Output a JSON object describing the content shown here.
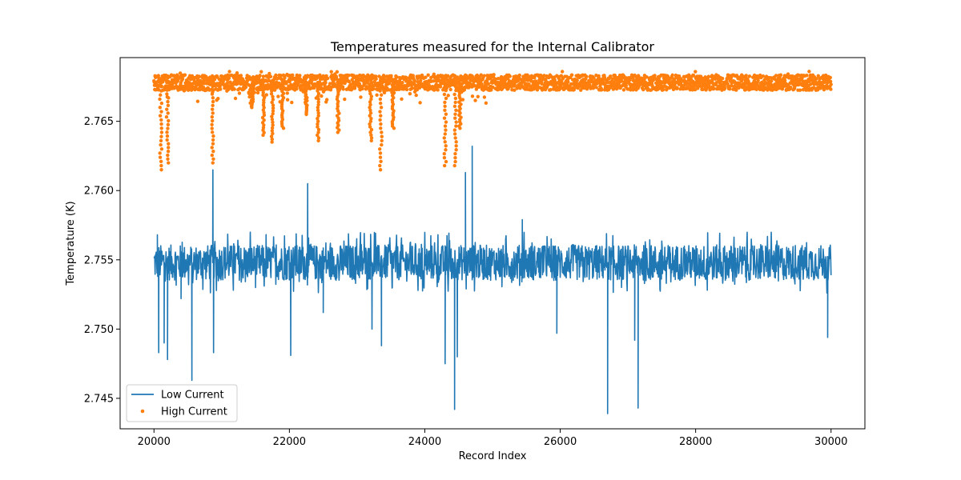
{
  "chart_data": {
    "type": "line",
    "title": "Temperatures measured for the Internal Calibrator",
    "xlabel": "Record Index",
    "ylabel": "Temperature (K)",
    "xlim": [
      19500,
      30500
    ],
    "ylim": [
      2.7428,
      2.7696
    ],
    "xticks": [
      20000,
      22000,
      24000,
      26000,
      28000,
      30000
    ],
    "xtick_labels": [
      "20000",
      "22000",
      "24000",
      "26000",
      "28000",
      "30000"
    ],
    "yticks": [
      2.745,
      2.75,
      2.755,
      2.76,
      2.765
    ],
    "ytick_labels": [
      "2.745",
      "2.750",
      "2.755",
      "2.760",
      "2.765"
    ],
    "grid": false,
    "legend_position": "lower-left",
    "series": [
      {
        "name": "Low Current",
        "style": "line",
        "color": "#1f77b4",
        "x_range": [
          20000,
          30000
        ],
        "baseline": 2.7548,
        "noise_band": [
          2.7535,
          2.7562
        ],
        "spikes": [
          {
            "x": 20050,
            "y": 2.7568
          },
          {
            "x": 20070,
            "y": 2.7483
          },
          {
            "x": 20150,
            "y": 2.749
          },
          {
            "x": 20200,
            "y": 2.7478
          },
          {
            "x": 20400,
            "y": 2.7522
          },
          {
            "x": 20560,
            "y": 2.7463
          },
          {
            "x": 20870,
            "y": 2.7615
          },
          {
            "x": 20880,
            "y": 2.7483
          },
          {
            "x": 21500,
            "y": 2.753
          },
          {
            "x": 21650,
            "y": 2.7545
          },
          {
            "x": 22020,
            "y": 2.7481
          },
          {
            "x": 22270,
            "y": 2.7605
          },
          {
            "x": 22500,
            "y": 2.7512
          },
          {
            "x": 23000,
            "y": 2.7548
          },
          {
            "x": 23220,
            "y": 2.75
          },
          {
            "x": 23360,
            "y": 2.7488
          },
          {
            "x": 23520,
            "y": 2.753
          },
          {
            "x": 24300,
            "y": 2.7475
          },
          {
            "x": 24440,
            "y": 2.7442
          },
          {
            "x": 24480,
            "y": 2.748
          },
          {
            "x": 24600,
            "y": 2.7613
          },
          {
            "x": 24700,
            "y": 2.7632
          },
          {
            "x": 25440,
            "y": 2.7579
          },
          {
            "x": 25950,
            "y": 2.7497
          },
          {
            "x": 26700,
            "y": 2.7439
          },
          {
            "x": 27100,
            "y": 2.7492
          },
          {
            "x": 27150,
            "y": 2.7443
          },
          {
            "x": 29950,
            "y": 2.7494
          }
        ]
      },
      {
        "name": "High Current",
        "style": "scatter",
        "color": "#ff7f0e",
        "x_range": [
          20000,
          30000
        ],
        "baseline": 2.7678,
        "noise_band": [
          2.7672,
          2.7683
        ],
        "dips": [
          {
            "x": 20100,
            "y": 2.7615
          },
          {
            "x": 20200,
            "y": 2.762
          },
          {
            "x": 20870,
            "y": 2.762
          },
          {
            "x": 21450,
            "y": 2.766
          },
          {
            "x": 21620,
            "y": 2.764
          },
          {
            "x": 21750,
            "y": 2.7635
          },
          {
            "x": 21900,
            "y": 2.7645
          },
          {
            "x": 22250,
            "y": 2.7655
          },
          {
            "x": 22420,
            "y": 2.7636
          },
          {
            "x": 22720,
            "y": 2.7642
          },
          {
            "x": 23200,
            "y": 2.7636
          },
          {
            "x": 23350,
            "y": 2.7615
          },
          {
            "x": 23530,
            "y": 2.7645
          },
          {
            "x": 24300,
            "y": 2.7618
          },
          {
            "x": 24450,
            "y": 2.7618
          },
          {
            "x": 24520,
            "y": 2.7645
          }
        ]
      }
    ]
  }
}
